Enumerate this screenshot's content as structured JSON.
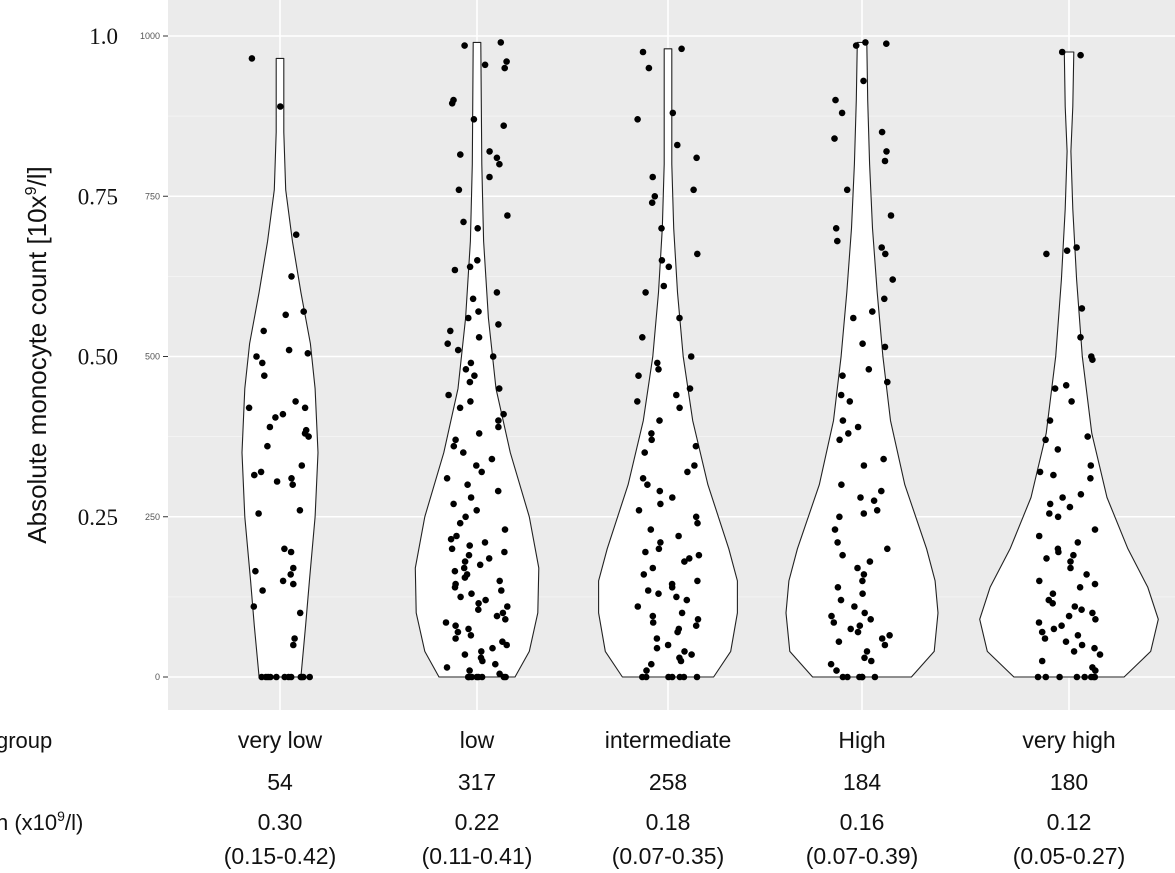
{
  "chart_data": {
    "type": "violin",
    "title": "",
    "ylabel": "Absolute monocyte count [10x9/l]",
    "ylabel_parts": {
      "base": "Absolute monocyte count [10x",
      "sup": "9",
      "tail": "/l]"
    },
    "ylim": [
      0,
      1000
    ],
    "yticks_inner": [
      "0",
      "250",
      "500",
      "750",
      "1000"
    ],
    "yticks_inner_values": [
      0,
      250,
      500,
      750,
      1000
    ],
    "yticks_outer": [
      "0.25",
      "0.50",
      "0.75",
      "1.0"
    ],
    "yticks_outer_values": [
      250,
      500,
      750,
      1000
    ],
    "grid": true,
    "background": "#ebebeb",
    "point_color": "#000000",
    "categories": [
      "very low",
      "low",
      "intermediate",
      "High",
      "very high"
    ],
    "row_labels": {
      "group": "group",
      "median_base": "n  (x10",
      "median_sup": "9",
      "median_tail": "/l)"
    },
    "counts": [
      "54",
      "317",
      "258",
      "184",
      "180"
    ],
    "medians": [
      "0.30",
      "0.22",
      "0.18",
      "0.16",
      "0.12"
    ],
    "iqr": [
      "(0.15-0.42)",
      "(0.11-0.41)",
      "(0.07-0.35)",
      "(0.07-0.39)",
      "(0.05-0.27)"
    ],
    "violins": [
      {
        "name": "very low",
        "top": 965,
        "profile": [
          [
            0,
            0.22
          ],
          [
            80,
            0.27
          ],
          [
            150,
            0.31
          ],
          [
            250,
            0.37
          ],
          [
            350,
            0.4
          ],
          [
            450,
            0.37
          ],
          [
            520,
            0.32
          ],
          [
            600,
            0.22
          ],
          [
            680,
            0.13
          ],
          [
            760,
            0.06
          ],
          [
            850,
            0.04
          ],
          [
            965,
            0.04
          ]
        ]
      },
      {
        "name": "low",
        "top": 990,
        "profile": [
          [
            0,
            0.4
          ],
          [
            40,
            0.55
          ],
          [
            100,
            0.64
          ],
          [
            170,
            0.65
          ],
          [
            250,
            0.55
          ],
          [
            350,
            0.35
          ],
          [
            450,
            0.2
          ],
          [
            560,
            0.12
          ],
          [
            680,
            0.07
          ],
          [
            800,
            0.05
          ],
          [
            990,
            0.04
          ]
        ]
      },
      {
        "name": "intermediate",
        "top": 980,
        "profile": [
          [
            0,
            0.48
          ],
          [
            40,
            0.66
          ],
          [
            100,
            0.73
          ],
          [
            150,
            0.73
          ],
          [
            200,
            0.64
          ],
          [
            300,
            0.42
          ],
          [
            400,
            0.26
          ],
          [
            500,
            0.16
          ],
          [
            600,
            0.1
          ],
          [
            700,
            0.06
          ],
          [
            800,
            0.04
          ],
          [
            980,
            0.04
          ]
        ]
      },
      {
        "name": "High",
        "top": 990,
        "profile": [
          [
            0,
            0.52
          ],
          [
            40,
            0.76
          ],
          [
            100,
            0.8
          ],
          [
            150,
            0.77
          ],
          [
            200,
            0.68
          ],
          [
            300,
            0.45
          ],
          [
            400,
            0.3
          ],
          [
            500,
            0.22
          ],
          [
            600,
            0.16
          ],
          [
            700,
            0.11
          ],
          [
            800,
            0.08
          ],
          [
            900,
            0.06
          ],
          [
            990,
            0.05
          ]
        ]
      },
      {
        "name": "very high",
        "top": 975,
        "profile": [
          [
            0,
            0.58
          ],
          [
            40,
            0.86
          ],
          [
            90,
            0.94
          ],
          [
            140,
            0.83
          ],
          [
            200,
            0.62
          ],
          [
            280,
            0.4
          ],
          [
            380,
            0.24
          ],
          [
            500,
            0.14
          ],
          [
            620,
            0.08
          ],
          [
            730,
            0.04
          ],
          [
            820,
            0.02
          ],
          [
            890,
            0.04
          ],
          [
            975,
            0.05
          ]
        ]
      }
    ],
    "points": [
      {
        "name": "very low",
        "n": 54,
        "values": [
          965,
          890,
          690,
          625,
          570,
          565,
          540,
          510,
          505,
          500,
          490,
          470,
          430,
          420,
          420,
          410,
          405,
          390,
          385,
          380,
          375,
          360,
          330,
          320,
          315,
          310,
          305,
          300,
          260,
          255,
          200,
          195,
          170,
          165,
          160,
          150,
          145,
          135,
          110,
          100,
          60,
          50,
          0,
          0,
          0,
          0,
          0,
          0,
          0,
          0,
          0,
          0,
          0,
          0
        ]
      },
      {
        "name": "low",
        "n": 317,
        "values": [
          990,
          985,
          960,
          955,
          950,
          900,
          895,
          870,
          860,
          820,
          815,
          810,
          800,
          780,
          760,
          720,
          710,
          700,
          650,
          640,
          635,
          600,
          590,
          570,
          560,
          550,
          540,
          530,
          520,
          510,
          500,
          490,
          480,
          470,
          460,
          450,
          440,
          430,
          420,
          410,
          400,
          390,
          380,
          370,
          360,
          350,
          340,
          330,
          320,
          310,
          300,
          290,
          280,
          270,
          260,
          250,
          240,
          230,
          220,
          215,
          210,
          205,
          200,
          195,
          190,
          185,
          180,
          175,
          170,
          165,
          160,
          155,
          150,
          145,
          140,
          135,
          130,
          125,
          120,
          115,
          110,
          105,
          100,
          95,
          90,
          85,
          80,
          75,
          70,
          65,
          60,
          55,
          50,
          45,
          40,
          35,
          30,
          25,
          20,
          15,
          10,
          5,
          0,
          0,
          0,
          0,
          0,
          0,
          0,
          0
        ]
      },
      {
        "name": "intermediate",
        "n": 258,
        "values": [
          980,
          975,
          950,
          880,
          870,
          830,
          810,
          780,
          760,
          750,
          740,
          700,
          660,
          650,
          640,
          610,
          600,
          560,
          530,
          500,
          490,
          480,
          470,
          450,
          440,
          430,
          420,
          400,
          380,
          370,
          360,
          350,
          330,
          320,
          310,
          300,
          290,
          280,
          270,
          260,
          250,
          240,
          230,
          220,
          210,
          200,
          195,
          190,
          185,
          180,
          170,
          160,
          150,
          145,
          140,
          135,
          130,
          125,
          120,
          110,
          100,
          95,
          90,
          85,
          80,
          75,
          70,
          60,
          50,
          45,
          40,
          35,
          30,
          25,
          20,
          10,
          0,
          0,
          0,
          0,
          0,
          0,
          0
        ]
      },
      {
        "name": "High",
        "n": 184,
        "values": [
          990,
          988,
          985,
          930,
          900,
          880,
          850,
          840,
          820,
          805,
          760,
          720,
          700,
          680,
          670,
          660,
          620,
          590,
          570,
          560,
          520,
          515,
          480,
          470,
          460,
          440,
          430,
          400,
          390,
          380,
          370,
          340,
          330,
          300,
          290,
          280,
          275,
          260,
          255,
          250,
          230,
          210,
          200,
          190,
          180,
          170,
          160,
          150,
          140,
          130,
          120,
          110,
          100,
          95,
          90,
          85,
          80,
          75,
          70,
          65,
          60,
          55,
          50,
          40,
          30,
          25,
          20,
          10,
          0,
          0,
          0,
          0,
          0,
          0
        ]
      },
      {
        "name": "very high",
        "n": 180,
        "values": [
          975,
          970,
          670,
          665,
          660,
          575,
          530,
          500,
          495,
          455,
          450,
          430,
          400,
          375,
          370,
          355,
          330,
          320,
          315,
          310,
          285,
          280,
          270,
          265,
          255,
          250,
          230,
          220,
          210,
          200,
          195,
          190,
          185,
          180,
          170,
          160,
          150,
          145,
          140,
          130,
          120,
          115,
          110,
          105,
          100,
          95,
          90,
          85,
          80,
          75,
          70,
          65,
          60,
          55,
          50,
          45,
          40,
          35,
          25,
          15,
          10,
          0,
          0,
          0,
          0,
          0,
          0,
          0,
          0
        ]
      }
    ]
  }
}
